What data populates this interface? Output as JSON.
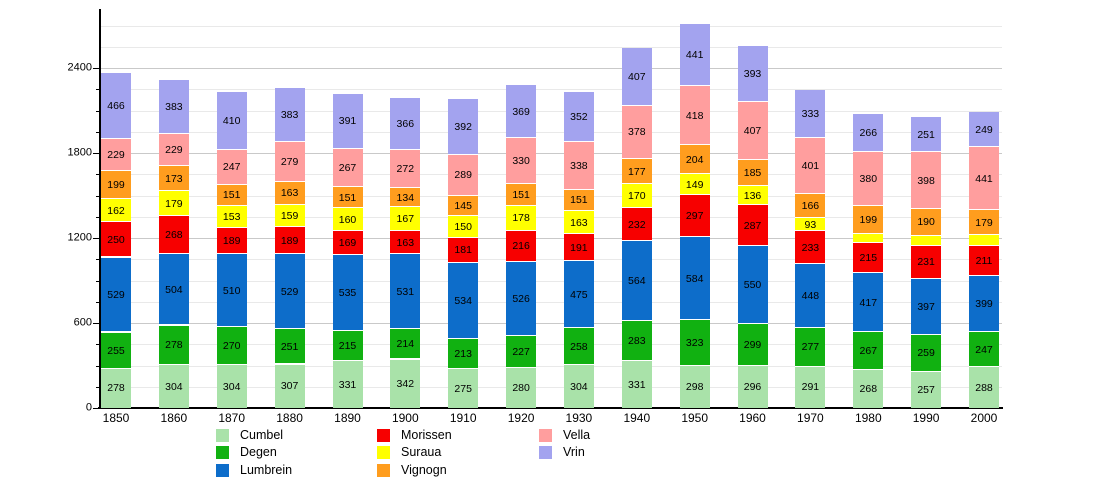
{
  "chart_data": {
    "type": "bar",
    "stacked": true,
    "title": "",
    "xlabel": "",
    "ylabel": "",
    "categories": [
      "1850",
      "1860",
      "1870",
      "1880",
      "1890",
      "1900",
      "1910",
      "1920",
      "1930",
      "1940",
      "1950",
      "1960",
      "1970",
      "1980",
      "1990",
      "2000"
    ],
    "series": [
      {
        "name": "Cumbel",
        "color": "#a9e2a9",
        "values": [
          278,
          304,
          304,
          307,
          331,
          342,
          275,
          280,
          304,
          331,
          298,
          296,
          291,
          268,
          257,
          288
        ]
      },
      {
        "name": "Degen",
        "color": "#11b111",
        "values": [
          255,
          278,
          270,
          251,
          215,
          214,
          213,
          227,
          258,
          283,
          323,
          299,
          277,
          267,
          259,
          247
        ]
      },
      {
        "name": "Lumbrein",
        "color": "#0d6dca",
        "values": [
          529,
          504,
          510,
          529,
          535,
          531,
          534,
          526,
          475,
          564,
          584,
          550,
          448,
          417,
          397,
          399
        ]
      },
      {
        "name": "Morissen",
        "color": "#f70000",
        "values": [
          250,
          268,
          189,
          189,
          169,
          163,
          181,
          216,
          191,
          232,
          297,
          287,
          233,
          215,
          231,
          211
        ]
      },
      {
        "name": "Suraua",
        "color": "#ffff00",
        "values": [
          162,
          179,
          153,
          159,
          160,
          167,
          150,
          178,
          163,
          170,
          149,
          136,
          93,
          62,
          73,
          75
        ]
      },
      {
        "name": "Vignogn",
        "color": "#ff9d1e",
        "values": [
          199,
          173,
          151,
          163,
          151,
          134,
          145,
          151,
          151,
          177,
          204,
          185,
          166,
          199,
          190,
          179
        ]
      },
      {
        "name": "Vella",
        "color": "#ff9e9e",
        "values": [
          229,
          229,
          247,
          279,
          267,
          272,
          289,
          330,
          338,
          378,
          418,
          407,
          401,
          380,
          398,
          441
        ]
      },
      {
        "name": "Vrin",
        "color": "#a3a3ef",
        "values": [
          466,
          383,
          410,
          383,
          391,
          366,
          392,
          369,
          352,
          407,
          441,
          393,
          333,
          266,
          251,
          249
        ]
      }
    ],
    "ylim": [
      0,
      2800
    ],
    "yticks_major": [
      0,
      600,
      1200,
      1800,
      2400
    ],
    "ytick_minor_step": 150,
    "grid": true,
    "bar_value_labels": true,
    "legend_position": "bottom",
    "legend_columns": [
      [
        "Cumbel",
        "Degen",
        "Lumbrein"
      ],
      [
        "Morissen",
        "Suraua",
        "Vignogn"
      ],
      [
        "Vella",
        "Vrin"
      ]
    ]
  }
}
